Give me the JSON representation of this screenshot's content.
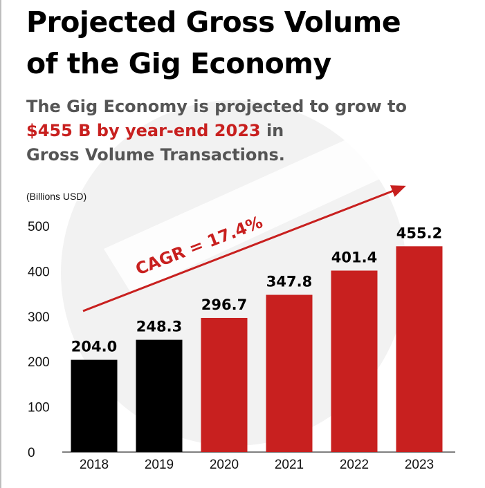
{
  "title": {
    "line1": "Projected Gross Volume",
    "line2": "of the Gig Economy"
  },
  "subtitle": {
    "line1": "The Gig Economy is projected to grow to",
    "highlight": "$455 B by year-end 2023",
    "line2_rest": " in",
    "line3": "Gross Volume Transactions."
  },
  "units_label": "(Billions USD)",
  "annotation": "CAGR = 17.4%",
  "colors": {
    "historical": "#000000",
    "projected": "#c8201f",
    "accent": "#c8201f",
    "axis": "#555555"
  },
  "chart_data": {
    "type": "bar",
    "title": "Projected Gross Volume of the Gig Economy",
    "ylabel": "(Billions USD)",
    "xlabel": "",
    "categories": [
      "2018",
      "2019",
      "2020",
      "2021",
      "2022",
      "2023"
    ],
    "values": [
      204.0,
      248.3,
      296.7,
      347.8,
      401.4,
      455.2
    ],
    "value_labels": [
      "204.0",
      "248.3",
      "296.7",
      "347.8",
      "401.4",
      "455.2"
    ],
    "bar_colors": [
      "#000000",
      "#000000",
      "#c8201f",
      "#c8201f",
      "#c8201f",
      "#c8201f"
    ],
    "ylim": [
      0,
      500
    ],
    "yticks": [
      0,
      100,
      200,
      300,
      400,
      500
    ],
    "grid": false,
    "legend": "none",
    "annotations": [
      "CAGR = 17.4%"
    ]
  }
}
